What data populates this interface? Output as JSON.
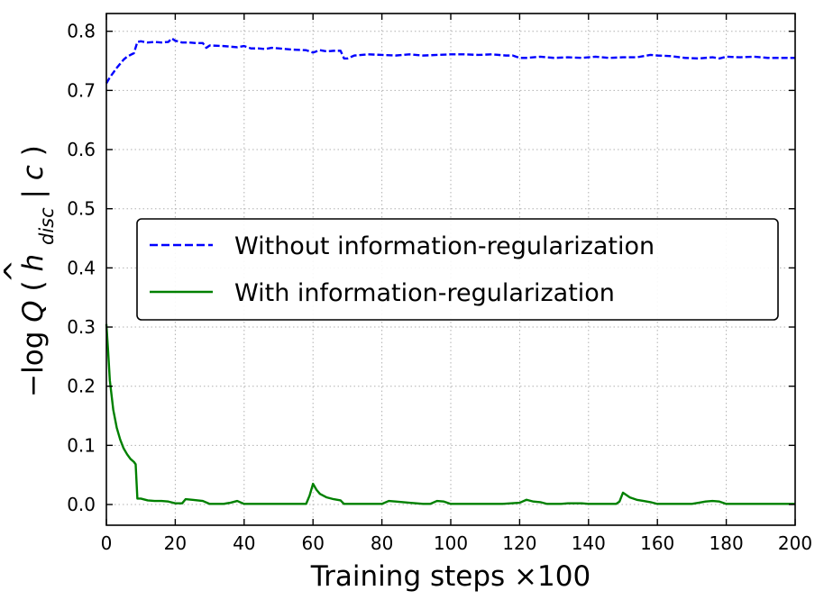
{
  "chart_data": {
    "type": "line",
    "xlabel": "Training steps ×100",
    "ylabel_parts": {
      "prefix": "−log",
      "func": "Q",
      "var": "h",
      "hat": "^",
      "subscript": "disc",
      "given": "c"
    },
    "xlim": [
      0,
      200
    ],
    "ylim": [
      -0.035,
      0.83
    ],
    "x_ticks": [
      0,
      20,
      40,
      60,
      80,
      100,
      120,
      140,
      160,
      180,
      200
    ],
    "y_ticks": [
      0.0,
      0.1,
      0.2,
      0.3,
      0.4,
      0.5,
      0.6,
      0.7,
      0.8
    ],
    "y_tick_labels": [
      "0.0",
      "0.1",
      "0.2",
      "0.3",
      "0.4",
      "0.5",
      "0.6",
      "0.7",
      "0.8"
    ],
    "grid": true,
    "legend_position": "center-right",
    "series": [
      {
        "name": "Without information-regularization",
        "color": "#0000ff",
        "style": "dashed",
        "x": [
          0,
          1,
          2,
          3,
          4,
          5,
          6,
          7,
          8,
          9,
          10,
          12,
          14,
          16,
          18,
          19,
          20,
          22,
          24,
          26,
          28,
          29,
          30,
          34,
          38,
          40,
          42,
          44,
          46,
          48,
          50,
          54,
          58,
          60,
          62,
          64,
          66,
          68,
          69,
          70,
          72,
          76,
          80,
          84,
          88,
          92,
          96,
          100,
          104,
          108,
          112,
          116,
          118,
          120,
          122,
          126,
          130,
          134,
          138,
          142,
          146,
          150,
          154,
          158,
          160,
          164,
          168,
          172,
          176,
          178,
          180,
          184,
          188,
          192,
          196,
          200
        ],
        "y": [
          0.712,
          0.722,
          0.73,
          0.738,
          0.745,
          0.752,
          0.757,
          0.76,
          0.763,
          0.782,
          0.783,
          0.781,
          0.782,
          0.781,
          0.782,
          0.788,
          0.784,
          0.781,
          0.781,
          0.78,
          0.78,
          0.772,
          0.776,
          0.775,
          0.773,
          0.775,
          0.771,
          0.771,
          0.77,
          0.772,
          0.771,
          0.769,
          0.768,
          0.764,
          0.768,
          0.766,
          0.767,
          0.767,
          0.754,
          0.754,
          0.759,
          0.761,
          0.76,
          0.759,
          0.761,
          0.759,
          0.76,
          0.761,
          0.761,
          0.76,
          0.761,
          0.759,
          0.759,
          0.755,
          0.755,
          0.757,
          0.755,
          0.756,
          0.755,
          0.757,
          0.755,
          0.756,
          0.756,
          0.76,
          0.759,
          0.758,
          0.755,
          0.754,
          0.756,
          0.754,
          0.757,
          0.756,
          0.757,
          0.755,
          0.755,
          0.755
        ]
      },
      {
        "name": "With information-regularization",
        "color": "#008000",
        "style": "solid",
        "x": [
          0,
          0.5,
          1,
          2,
          3,
          4,
          5,
          6,
          7,
          8,
          8.5,
          9,
          10,
          12,
          14,
          16,
          18,
          20,
          22,
          23,
          25,
          28,
          30,
          32,
          34,
          36,
          38,
          40,
          45,
          50,
          55,
          58,
          59,
          60,
          61,
          62,
          64,
          66,
          68,
          69,
          70,
          75,
          80,
          82,
          84,
          88,
          92,
          94,
          96,
          98,
          100,
          105,
          110,
          115,
          120,
          122,
          124,
          126,
          128,
          130,
          132,
          134,
          136,
          138,
          140,
          145,
          148,
          149,
          150,
          151,
          152,
          154,
          156,
          158,
          160,
          165,
          170,
          172,
          174,
          176,
          178,
          180,
          185,
          190,
          195,
          200
        ],
        "y": [
          0.305,
          0.26,
          0.21,
          0.16,
          0.13,
          0.11,
          0.095,
          0.085,
          0.077,
          0.072,
          0.068,
          0.01,
          0.01,
          0.007,
          0.006,
          0.006,
          0.005,
          0.002,
          0.002,
          0.009,
          0.008,
          0.006,
          0.001,
          0.001,
          0.001,
          0.003,
          0.006,
          0.001,
          0.001,
          0.001,
          0.001,
          0.001,
          0.015,
          0.035,
          0.025,
          0.018,
          0.012,
          0.009,
          0.007,
          0.001,
          0.001,
          0.001,
          0.001,
          0.006,
          0.005,
          0.003,
          0.001,
          0.001,
          0.006,
          0.005,
          0.001,
          0.001,
          0.001,
          0.001,
          0.003,
          0.008,
          0.005,
          0.004,
          0.001,
          0.001,
          0.001,
          0.002,
          0.002,
          0.002,
          0.001,
          0.001,
          0.001,
          0.005,
          0.02,
          0.016,
          0.012,
          0.008,
          0.006,
          0.004,
          0.001,
          0.001,
          0.001,
          0.003,
          0.005,
          0.006,
          0.005,
          0.001,
          0.001,
          0.001,
          0.001,
          0.001
        ]
      }
    ]
  }
}
